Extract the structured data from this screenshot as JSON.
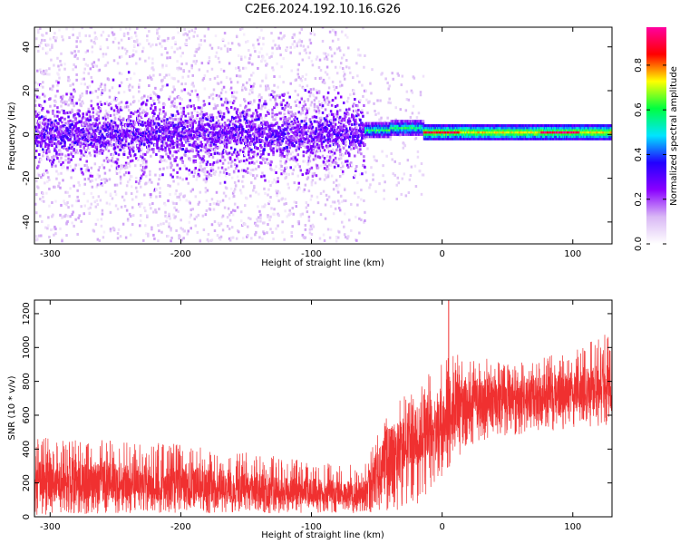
{
  "figure_title": "C2E6.2024.192.10.16.G26",
  "chart_data": [
    {
      "type": "heatmap",
      "xlabel": "Height of straight line (km)",
      "ylabel": "Frequency (Hz)",
      "xlim": [
        -312,
        130
      ],
      "ylim": [
        -50,
        49
      ],
      "xticks": [
        -300,
        -200,
        -100,
        0,
        100
      ],
      "yticks": [
        -40,
        -20,
        0,
        20,
        40
      ],
      "xtick_labels": [
        "-300",
        "-200",
        "-100",
        "0",
        "100"
      ],
      "ytick_labels": [
        "-40",
        "-20",
        "0",
        "20",
        "40"
      ],
      "colorbar": {
        "label": "Normalized spectral amplitude",
        "range": [
          0,
          0.97
        ],
        "ticks": [
          0.0,
          0.2,
          0.4,
          0.6,
          0.8
        ],
        "tick_labels": [
          "0.0",
          "0.2",
          "0.4",
          "0.6",
          "0.8"
        ],
        "colormap": [
          "#ffffff",
          "#d9b8f5",
          "#8a00ff",
          "#2200ff",
          "#00e5ff",
          "#00ff40",
          "#ffff00",
          "#ff0000",
          "#ff00a0"
        ]
      },
      "segments": [
        {
          "x_range": [
            -312,
            -60
          ],
          "description_value": "noisy",
          "center_freq": 0,
          "core_halfwidth": 6,
          "spread_halfwidth": 49,
          "amplitude_core": 0.25
        },
        {
          "x_range": [
            -60,
            -15
          ],
          "description_value": "transition",
          "center_freq": 2,
          "core_halfwidth": 3,
          "amplitude_core": 0.6
        },
        {
          "x_range": [
            -15,
            130
          ],
          "description_value": "stable",
          "center_freq": 1,
          "core_halfwidth": 2,
          "amplitude_core": 0.75
        }
      ]
    },
    {
      "type": "line",
      "xlabel": "Height of straight line (km)",
      "ylabel": "SNR (10 * v/v)",
      "xlim": [
        -312,
        130
      ],
      "ylim": [
        0,
        1280
      ],
      "xticks": [
        -300,
        -200,
        -100,
        0,
        100
      ],
      "yticks": [
        0,
        200,
        400,
        600,
        800,
        1000,
        1200
      ],
      "xtick_labels": [
        "-300",
        "-200",
        "-100",
        "0",
        "100"
      ],
      "ytick_labels": [
        "0",
        "200",
        "400",
        "600",
        "800",
        "1000",
        "1200"
      ],
      "color": "#f03030",
      "envelope": [
        {
          "x": -312,
          "low": 10,
          "mid": 210,
          "high": 480
        },
        {
          "x": -250,
          "low": 20,
          "mid": 200,
          "high": 450
        },
        {
          "x": -200,
          "low": 20,
          "mid": 190,
          "high": 430
        },
        {
          "x": -150,
          "low": 20,
          "mid": 170,
          "high": 380
        },
        {
          "x": -100,
          "low": 20,
          "mid": 150,
          "high": 330
        },
        {
          "x": -60,
          "low": 20,
          "mid": 140,
          "high": 300
        },
        {
          "x": -50,
          "low": 30,
          "mid": 280,
          "high": 480
        },
        {
          "x": -40,
          "low": 30,
          "mid": 380,
          "high": 620
        },
        {
          "x": -20,
          "low": 60,
          "mid": 480,
          "high": 800
        },
        {
          "x": -5,
          "low": 200,
          "mid": 560,
          "high": 880
        },
        {
          "x": 5,
          "low": 280,
          "mid": 620,
          "high": 950
        },
        {
          "x": 20,
          "low": 420,
          "mid": 700,
          "high": 970
        },
        {
          "x": 50,
          "low": 480,
          "mid": 700,
          "high": 900
        },
        {
          "x": 100,
          "low": 520,
          "mid": 730,
          "high": 980
        },
        {
          "x": 130,
          "low": 540,
          "mid": 780,
          "high": 1100
        }
      ],
      "peak": {
        "x": 5,
        "y": 1280
      }
    }
  ]
}
